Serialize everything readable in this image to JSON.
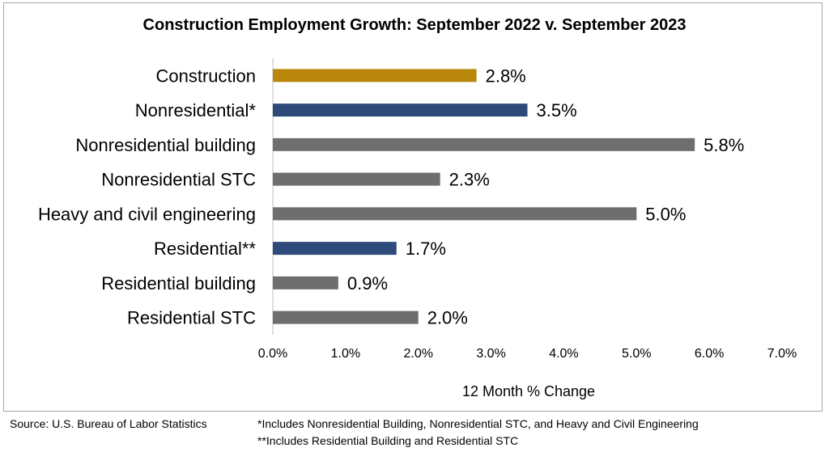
{
  "chart_data": {
    "type": "bar",
    "orientation": "horizontal",
    "title": "Construction Employment Growth: September 2022 v. September 2023",
    "xlabel": "12 Month % Change",
    "ylabel": "",
    "xlim": [
      0,
      7
    ],
    "x_ticks": [
      "0.0%",
      "1.0%",
      "2.0%",
      "3.0%",
      "4.0%",
      "5.0%",
      "6.0%",
      "7.0%"
    ],
    "grid": false,
    "legend": "none",
    "categories": [
      "Construction",
      "Nonresidential*",
      "Nonresidential building",
      "Nonresidential STC",
      "Heavy and civil engineering",
      "Residential**",
      "Residential building",
      "Residential STC"
    ],
    "values": [
      2.8,
      3.5,
      5.8,
      2.3,
      5.0,
      1.7,
      0.9,
      2.0
    ],
    "value_labels": [
      "2.8%",
      "3.5%",
      "5.8%",
      "2.3%",
      "5.0%",
      "1.7%",
      "0.9%",
      "2.0%"
    ],
    "bar_colors": [
      "#b8860b",
      "#2e4a7a",
      "#6e6e6e",
      "#6e6e6e",
      "#6e6e6e",
      "#2e4a7a",
      "#6e6e6e",
      "#6e6e6e"
    ]
  },
  "footer": {
    "source": "Source:  U.S. Bureau of Labor Statistics",
    "note1": "*Includes Nonresidential Building, Nonresidential STC, and Heavy and Civil Engineering",
    "note2": "**Includes Residential Building and Residential STC"
  }
}
